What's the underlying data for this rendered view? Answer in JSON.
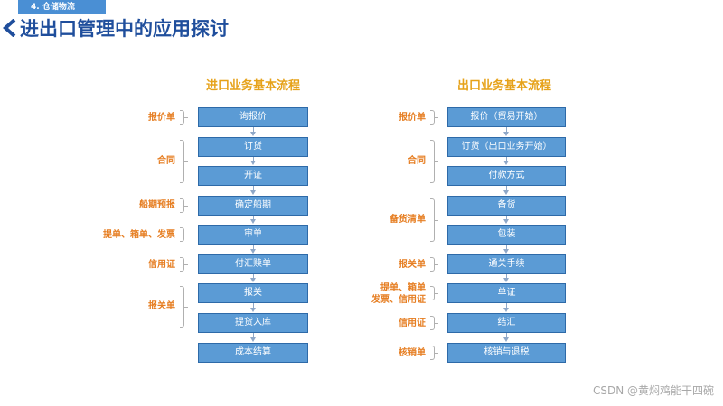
{
  "section_tag": "4. 仓储物流",
  "page_title": "进出口管理中的应用探讨",
  "colors": {
    "step_fill": "#5b9bd5",
    "flow_title": "#e6a21a",
    "doc_label": "#e67e22",
    "page_title": "#1f4e9c"
  },
  "import_flow": {
    "title": "进口业务基本流程",
    "steps": [
      "询报价",
      "订货",
      "开证",
      "确定船期",
      "审单",
      "付汇赎单",
      "报关",
      "提货入库",
      "成本结算"
    ],
    "docs": [
      "报价单",
      "合同",
      "船期预报",
      "提单、箱单、发票",
      "信用证",
      "报关单"
    ]
  },
  "export_flow": {
    "title": "出口业务基本流程",
    "steps": [
      "报价（贸易开始）",
      "订货（出口业务开始）",
      "付款方式",
      "备货",
      "包装",
      "通关手续",
      "单证",
      "结汇",
      "核销与退税"
    ],
    "docs": [
      "报价单",
      "合同",
      "备货清单",
      "报关单",
      [
        "提单、箱单",
        "发票、信用证"
      ],
      "信用证",
      "核销单"
    ]
  },
  "watermark": "CSDN @黄焖鸡能干四碗"
}
